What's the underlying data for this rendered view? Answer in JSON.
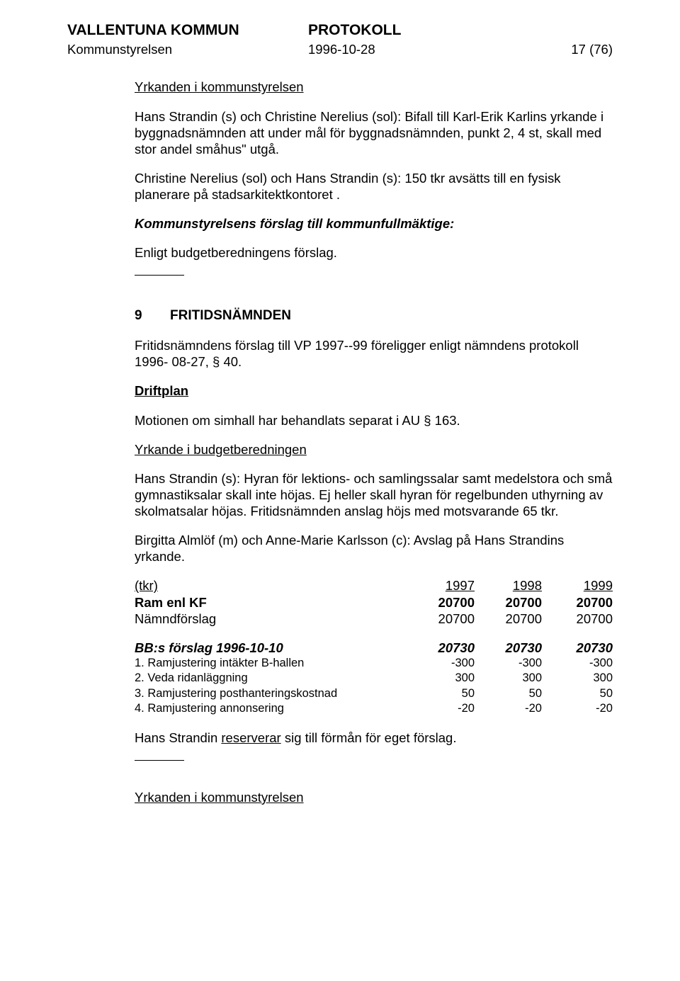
{
  "header": {
    "org": "VALLENTUNA KOMMUN",
    "doc": "PROTOKOLL",
    "committee": "Kommunstyrelsen",
    "date": "1996-10-28",
    "page": "17 (76)"
  },
  "body": {
    "h1": "Yrkanden i kommunstyrelsen",
    "p1": "Hans Strandin (s) och Christine Nerelius (sol): Bifall till Karl-Erik Karlins yrkande i byggnadsnämnden att under mål för byggnadsnämnden, punkt 2, 4 st, skall med stor andel småhus\" utgå.",
    "p2": "Christine Nerelius (sol) och Hans Strandin (s): 150 tkr avsätts till en fysisk planerare på stadsarkitektkontoret .",
    "p3": "Kommunstyrelsens förslag till kommunfullmäktige:",
    "p4": "Enligt budgetberedningens förslag.",
    "secnum": "9",
    "sectitle": "FRITIDSNÄMNDEN",
    "p5": "Fritidsnämndens förslag till VP 1997--99 föreligger enligt nämndens protokoll 1996- 08-27, § 40.",
    "h2": "Driftplan",
    "p6": "Motionen om simhall har behandlats separat i AU § 163.",
    "h3": "Yrkande i budgetberedningen",
    "p7": "Hans Strandin (s): Hyran för lektions- och samlingssalar samt medelstora och små gymnastiksalar skall inte höjas. Ej heller skall hyran för regelbunden uthyrning av skolmatsalar höjas. Fritidsnämnden anslag höjs med motsvarande 65 tkr.",
    "p8": "Birgitta Almlöf (m) och Anne-Marie Karlsson (c): Avslag på Hans Strandins yrkande.",
    "p9a": "Hans Strandin ",
    "p9b": "reserverar",
    "p9c": " sig till förmån för eget förslag.",
    "h4": "Yrkanden i kommunstyrelsen"
  },
  "table1": {
    "colyears": [
      "1997",
      "1998",
      "1999"
    ],
    "rows": [
      {
        "label": "(tkr)",
        "v": [
          "1997",
          "1998",
          "1999"
        ],
        "style": "plain"
      },
      {
        "label": "Ram enl KF",
        "v": [
          "20700",
          "20700",
          "20700"
        ],
        "style": "bold"
      },
      {
        "label": "Nämndförslag",
        "v": [
          "20700",
          "20700",
          "20700"
        ],
        "style": "plain"
      }
    ]
  },
  "table2": {
    "rows": [
      {
        "label": "BB:s förslag 1996-10-10",
        "v": [
          "20730",
          "20730",
          "20730"
        ],
        "style": "bolditalic"
      },
      {
        "label": "1. Ramjustering intäkter B-hallen",
        "v": [
          "-300",
          "-300",
          "-300"
        ],
        "style": "small"
      },
      {
        "label": "2. Veda ridanläggning",
        "v": [
          "300",
          "300",
          "300"
        ],
        "style": "small"
      },
      {
        "label": "3. Ramjustering posthanteringskostnad",
        "v": [
          "50",
          "50",
          "50"
        ],
        "style": "small"
      },
      {
        "label": "4. Ramjustering annonsering",
        "v": [
          "-20",
          "-20",
          "-20"
        ],
        "style": "small"
      }
    ]
  }
}
